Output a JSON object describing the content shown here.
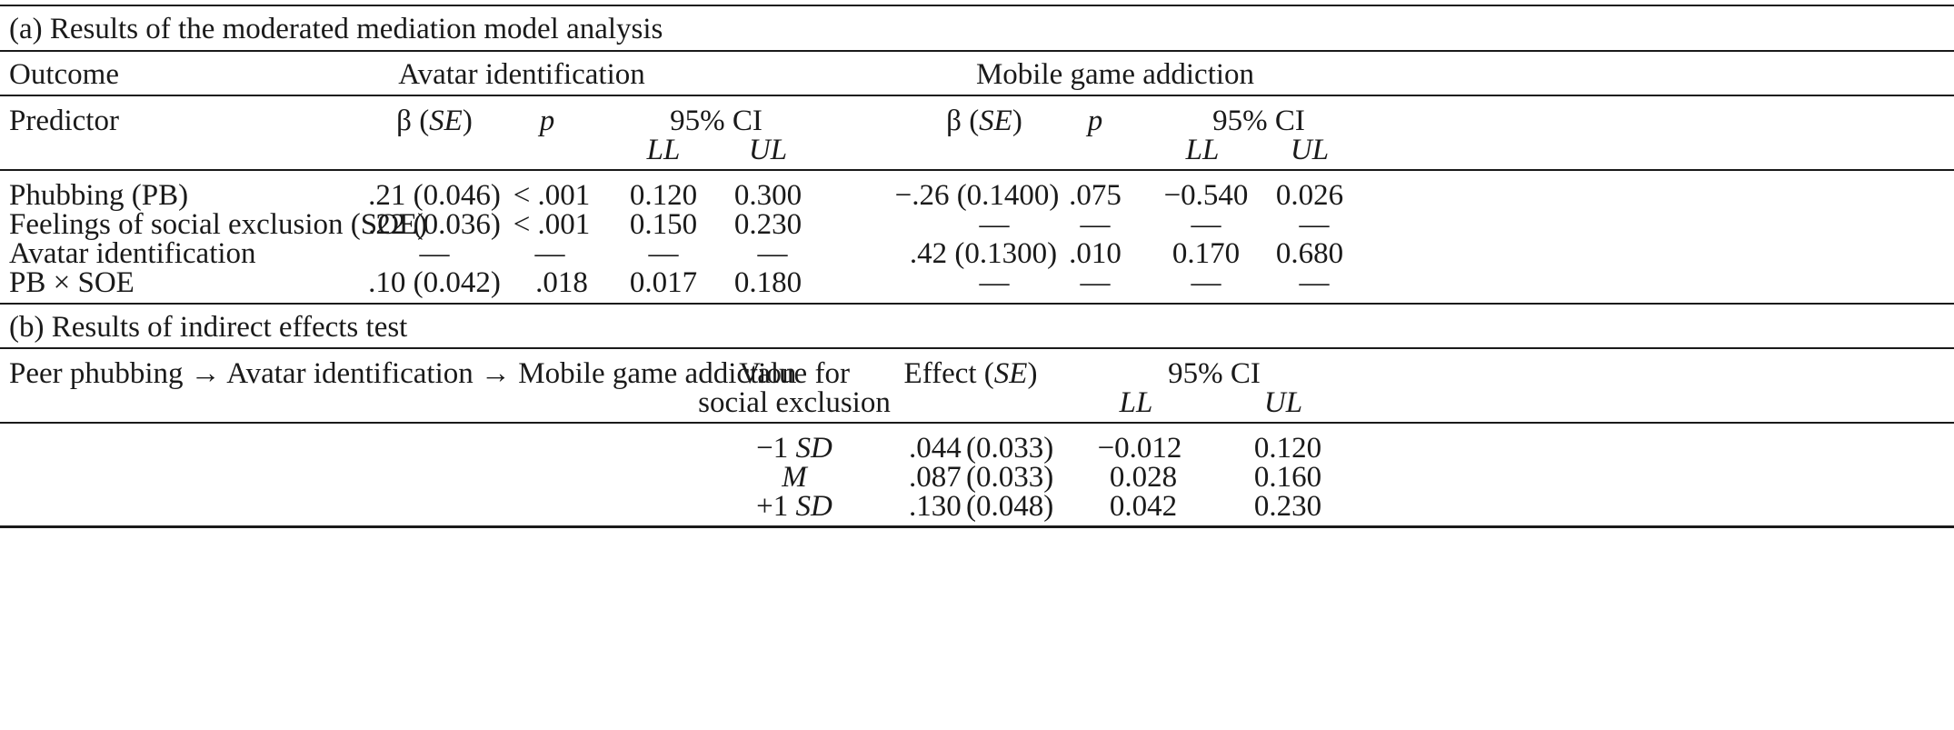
{
  "section_a": {
    "title": "(a) Results of the moderated mediation model analysis",
    "outcome_label": "Outcome",
    "outcome_1": "Avatar identification",
    "outcome_2": "Mobile game addiction",
    "predictor_label": "Predictor",
    "beta_pre": "β (",
    "beta_se": "SE",
    "beta_post": ")",
    "p_label": "p",
    "ci_label": "95% CI",
    "ll_label": "LL",
    "ul_label": "UL",
    "rows": [
      {
        "predictor": "Phubbing (PB)",
        "ai_beta": ".21 (0.046)",
        "ai_p": "< .001",
        "ai_ll": "0.120",
        "ai_ul": "0.300",
        "mga_beta": "−.26 (0.1400)",
        "mga_p": ".075",
        "mga_ll": "−0.540",
        "mga_ul": "0.026"
      },
      {
        "predictor": "Feelings of social exclusion (SOE)",
        "ai_beta": ".22 (0.036)",
        "ai_p": "< .001",
        "ai_ll": "0.150",
        "ai_ul": "0.230",
        "mga_beta": "—",
        "mga_p": "—",
        "mga_ll": "—",
        "mga_ul": "—"
      },
      {
        "predictor": "Avatar identification",
        "ai_beta": "—",
        "ai_p": "—",
        "ai_ll": "—",
        "ai_ul": "—",
        "mga_beta": ".42 (0.1300)",
        "mga_p": ".010",
        "mga_ll": "0.170",
        "mga_ul": "0.680"
      },
      {
        "predictor": "PB × SOE",
        "ai_beta": ".10 (0.042)",
        "ai_p": ".018",
        "ai_ll": "0.017",
        "ai_ul": "0.180",
        "mga_beta": "—",
        "mga_p": "—",
        "mga_ll": "—",
        "mga_ul": "—"
      }
    ]
  },
  "section_b": {
    "title": "(b) Results of indirect effects test",
    "path": "Peer phubbing → Avatar identification → Mobile game addiction",
    "value_label_1": "Value for",
    "value_label_2": "social exclusion",
    "effect_pre": "Effect (",
    "effect_se": "SE",
    "effect_post": ")",
    "ci_label": "95% CI",
    "ll_label": "LL",
    "ul_label": "UL",
    "rows": [
      {
        "v_pre": "−1 ",
        "v_it": "SD",
        "effect": ".044",
        "se": "(0.033)",
        "ll": "−0.012",
        "ul": "0.120"
      },
      {
        "v_pre": "",
        "v_it": "M",
        "effect": ".087",
        "se": "(0.033)",
        "ll": "0.028",
        "ul": "0.160"
      },
      {
        "v_pre": "+1 ",
        "v_it": "SD",
        "effect": ".130",
        "se": "(0.048)",
        "ll": "0.042",
        "ul": "0.230"
      }
    ]
  }
}
